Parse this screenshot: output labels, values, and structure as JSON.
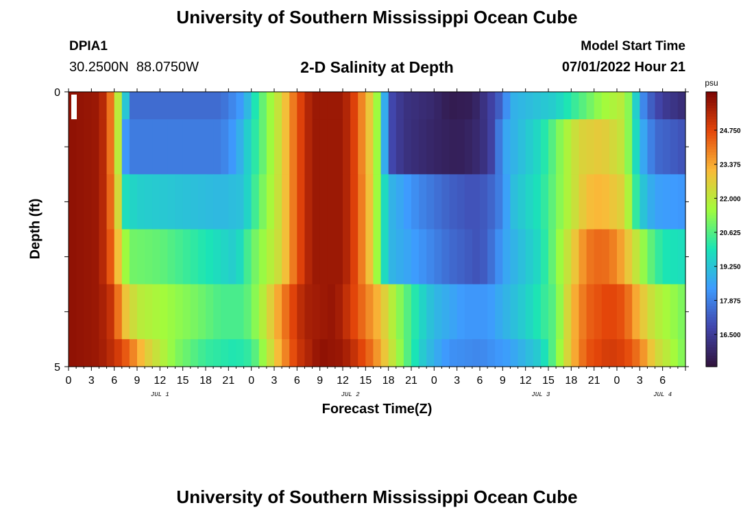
{
  "header": {
    "title": "University of Southern Mississippi Ocean Cube",
    "station": "DPIA1",
    "coords": "30.2500N  88.0750W",
    "subtitle": "2-D Salinity at Depth",
    "model_start_label": "Model Start Time",
    "model_start_value": "07/01/2022 Hour 21"
  },
  "footer": {
    "title": "University of Southern Mississippi Ocean Cube"
  },
  "chart_data": {
    "type": "heatmap",
    "title": "2-D Salinity at Depth",
    "xlabel": "Forecast Time(Z)",
    "ylabel": "Depth (ft)",
    "y_ticks": [
      "0",
      "5"
    ],
    "ylim": [
      0,
      5
    ],
    "x_hours_range": [
      0,
      81
    ],
    "x_tick_labels": [
      "0",
      "3",
      "6",
      "9",
      "12",
      "15",
      "18",
      "21",
      "0",
      "3",
      "6",
      "9",
      "12",
      "15",
      "18",
      "21",
      "0",
      "3",
      "6",
      "9",
      "12",
      "15",
      "18",
      "21",
      "0",
      "3",
      "6"
    ],
    "day_labels": [
      "JUL 1",
      "JUL 2",
      "JUL 3",
      "JUL 4"
    ],
    "day_label_hours": [
      12,
      37,
      62,
      78
    ],
    "colorbar": {
      "unit": "psu",
      "range": [
        15.2,
        26.3
      ],
      "ticks": [
        "24.750",
        "23.375",
        "22.000",
        "20.625",
        "19.250",
        "17.875",
        "16.500"
      ],
      "tick_values": [
        24.75,
        23.375,
        22.0,
        20.625,
        19.25,
        17.875,
        16.5
      ],
      "colors": [
        "#30123b",
        "#4145ab",
        "#3e9bfe",
        "#1ae4b6",
        "#a2fc3c",
        "#faba39",
        "#e4460a",
        "#7a0403"
      ]
    },
    "layers": [
      {
        "depth_range": [
          0,
          0.5
        ],
        "keys": [
          [
            0,
            26
          ],
          [
            4,
            25.8
          ],
          [
            5,
            25
          ],
          [
            6,
            23.2
          ],
          [
            6.7,
            21.5
          ],
          [
            7.5,
            19.3
          ],
          [
            8.5,
            17.5
          ],
          [
            15,
            17.5
          ],
          [
            20,
            17.5
          ],
          [
            23,
            18.5
          ],
          [
            25,
            20.5
          ],
          [
            28,
            22.5
          ],
          [
            30,
            24.5
          ],
          [
            32,
            25.8
          ],
          [
            36,
            25.8
          ],
          [
            38,
            24.5
          ],
          [
            39,
            23.2
          ],
          [
            40,
            22.5
          ],
          [
            41,
            20.5
          ],
          [
            42,
            17
          ],
          [
            44,
            16.2
          ],
          [
            48,
            15.9
          ],
          [
            50,
            15.5
          ],
          [
            53,
            15.6
          ],
          [
            55,
            16.4
          ],
          [
            57,
            17.5
          ],
          [
            58,
            18.8
          ],
          [
            64,
            19.5
          ],
          [
            67,
            20.5
          ],
          [
            70,
            21.5
          ],
          [
            73,
            22
          ],
          [
            74,
            20.5
          ],
          [
            75,
            18.5
          ],
          [
            76,
            17.5
          ],
          [
            78,
            16.5
          ],
          [
            81,
            16
          ]
        ]
      },
      {
        "depth_range": [
          0.5,
          1.5
        ],
        "keys": [
          [
            0,
            26
          ],
          [
            4,
            25.8
          ],
          [
            5,
            25
          ],
          [
            6,
            23.2
          ],
          [
            6.7,
            21.5
          ],
          [
            7.3,
            18.5
          ],
          [
            8,
            17.8
          ],
          [
            20,
            17.8
          ],
          [
            22,
            18.5
          ],
          [
            25,
            20.5
          ],
          [
            28,
            22.5
          ],
          [
            30,
            24.5
          ],
          [
            32,
            25.8
          ],
          [
            36,
            25.8
          ],
          [
            38,
            24.5
          ],
          [
            39,
            23.2
          ],
          [
            40,
            22.5
          ],
          [
            41,
            20.5
          ],
          [
            42,
            17
          ],
          [
            44,
            16.2
          ],
          [
            48,
            15.8
          ],
          [
            51,
            15.6
          ],
          [
            53,
            15.8
          ],
          [
            55,
            16.3
          ],
          [
            56,
            17
          ],
          [
            57,
            18.5
          ],
          [
            62,
            19.8
          ],
          [
            65,
            21.5
          ],
          [
            67,
            22.5
          ],
          [
            70,
            22.8
          ],
          [
            73,
            22
          ],
          [
            74,
            20.5
          ],
          [
            75,
            19
          ],
          [
            77,
            17.5
          ],
          [
            81,
            17
          ]
        ]
      },
      {
        "depth_range": [
          1.5,
          2.5
        ],
        "keys": [
          [
            0,
            26
          ],
          [
            4,
            25.8
          ],
          [
            5,
            25
          ],
          [
            6,
            23.5
          ],
          [
            6.7,
            22
          ],
          [
            7.5,
            19.8
          ],
          [
            9,
            19.5
          ],
          [
            20,
            19
          ],
          [
            23,
            19.2
          ],
          [
            25,
            20.8
          ],
          [
            28,
            22.5
          ],
          [
            30,
            24.5
          ],
          [
            32,
            25.8
          ],
          [
            36,
            25.8
          ],
          [
            38,
            24.5
          ],
          [
            39,
            23.4
          ],
          [
            40,
            22.5
          ],
          [
            41,
            20.5
          ],
          [
            42,
            19
          ],
          [
            46,
            18
          ],
          [
            50,
            17.3
          ],
          [
            53,
            17
          ],
          [
            55,
            17.2
          ],
          [
            57,
            18
          ],
          [
            58,
            19
          ],
          [
            62,
            20
          ],
          [
            66,
            22
          ],
          [
            68,
            23
          ],
          [
            70,
            23.2
          ],
          [
            73,
            22.5
          ],
          [
            74,
            21
          ],
          [
            75,
            19.5
          ],
          [
            77,
            18.5
          ],
          [
            81,
            18.3
          ]
        ]
      },
      {
        "depth_range": [
          2.5,
          3.5
        ],
        "keys": [
          [
            0,
            26
          ],
          [
            4,
            25.8
          ],
          [
            5,
            25
          ],
          [
            6,
            24
          ],
          [
            7,
            22
          ],
          [
            8,
            21
          ],
          [
            12,
            20.8
          ],
          [
            18,
            20
          ],
          [
            22,
            19.4
          ],
          [
            24,
            20.8
          ],
          [
            28,
            22.5
          ],
          [
            30,
            24.5
          ],
          [
            32,
            25.8
          ],
          [
            36,
            25.8
          ],
          [
            38,
            24.5
          ],
          [
            39,
            23.4
          ],
          [
            40,
            22.5
          ],
          [
            41,
            20.5
          ],
          [
            42,
            19
          ],
          [
            45,
            18.5
          ],
          [
            50,
            17.5
          ],
          [
            54,
            17
          ],
          [
            56,
            17.8
          ],
          [
            57,
            18.5
          ],
          [
            62,
            19.8
          ],
          [
            66,
            22.5
          ],
          [
            68,
            24
          ],
          [
            70,
            24.3
          ],
          [
            72,
            23.8
          ],
          [
            74,
            22.5
          ],
          [
            76,
            21
          ],
          [
            78,
            20
          ],
          [
            81,
            19.8
          ]
        ]
      },
      {
        "depth_range": [
          3.5,
          4.5
        ],
        "keys": [
          [
            0,
            26
          ],
          [
            4,
            25.8
          ],
          [
            6,
            25
          ],
          [
            7,
            23.2
          ],
          [
            9,
            22
          ],
          [
            13,
            21.5
          ],
          [
            17,
            21
          ],
          [
            20,
            20.5
          ],
          [
            23,
            20.5
          ],
          [
            25,
            21.5
          ],
          [
            27,
            23
          ],
          [
            29,
            24.5
          ],
          [
            31,
            25.6
          ],
          [
            35,
            25.9
          ],
          [
            37,
            25
          ],
          [
            39,
            24
          ],
          [
            41,
            23
          ],
          [
            43,
            21.5
          ],
          [
            46,
            19.8
          ],
          [
            48,
            19
          ],
          [
            52,
            18.3
          ],
          [
            55,
            18.3
          ],
          [
            57,
            18.8
          ],
          [
            60,
            19.5
          ],
          [
            64,
            20.8
          ],
          [
            66,
            23
          ],
          [
            68,
            24.3
          ],
          [
            71,
            24.8
          ],
          [
            73,
            24.5
          ],
          [
            75,
            23
          ],
          [
            77,
            22
          ],
          [
            79,
            21.5
          ],
          [
            81,
            21
          ]
        ]
      },
      {
        "depth_range": [
          4.5,
          5
        ],
        "keys": [
          [
            0,
            26
          ],
          [
            4,
            25.8
          ],
          [
            6,
            25.2
          ],
          [
            8,
            24.2
          ],
          [
            10,
            22.8
          ],
          [
            14,
            21.2
          ],
          [
            18,
            20.3
          ],
          [
            22,
            20
          ],
          [
            24,
            20.3
          ],
          [
            26,
            21.8
          ],
          [
            28,
            23.5
          ],
          [
            30,
            25
          ],
          [
            33,
            26
          ],
          [
            36,
            25.8
          ],
          [
            38,
            25
          ],
          [
            40,
            24
          ],
          [
            42,
            22.5
          ],
          [
            44,
            21
          ],
          [
            46,
            19.6
          ],
          [
            48,
            18.8
          ],
          [
            50,
            18.2
          ],
          [
            54,
            18
          ],
          [
            58,
            18.5
          ],
          [
            62,
            19.5
          ],
          [
            64,
            21
          ],
          [
            66,
            23
          ],
          [
            68,
            24.5
          ],
          [
            71,
            25
          ],
          [
            73,
            24.8
          ],
          [
            75,
            24
          ],
          [
            77,
            22.5
          ],
          [
            79,
            21.8
          ],
          [
            81,
            21
          ]
        ]
      }
    ]
  }
}
